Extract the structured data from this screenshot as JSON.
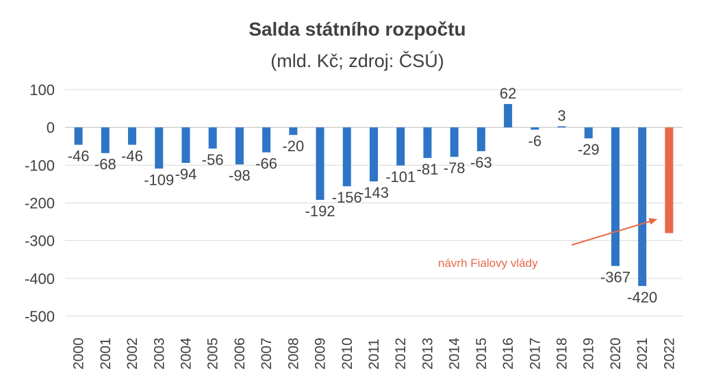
{
  "chart_data": {
    "type": "bar",
    "title": "Salda státního rozpočtu",
    "subtitle": "(mld. Kč; zdroj: ČSÚ)",
    "xlabel": "",
    "ylabel": "",
    "ylim": [
      -500,
      100
    ],
    "yticks": [
      "100",
      "0",
      "-100",
      "-200",
      "-300",
      "-400",
      "-500"
    ],
    "categories": [
      "2000",
      "2001",
      "2002",
      "2003",
      "2004",
      "2005",
      "2006",
      "2007",
      "2008",
      "2009",
      "2010",
      "2011",
      "2012",
      "2013",
      "2014",
      "2015",
      "2016",
      "2017",
      "2018",
      "2019",
      "2020",
      "2021",
      "2022"
    ],
    "values": [
      -46,
      -68,
      -46,
      -109,
      -94,
      -56,
      -98,
      -66,
      -20,
      -192,
      -156,
      -143,
      -101,
      -81,
      -78,
      -63,
      62,
      -6,
      3,
      -29,
      -367,
      -420,
      -280
    ],
    "data_labels": [
      "-46",
      "-68",
      "-46",
      "-109",
      "-94",
      "-56",
      "-98",
      "-66",
      "-20",
      "-192",
      "-156",
      "-143",
      "-101",
      "-81",
      "-78",
      "-63",
      "62",
      "-6",
      "3",
      "-29",
      "-367",
      "-420",
      ""
    ],
    "bar_color": "#2E75C6",
    "highlight_color": "#E8694A",
    "highlight_index": 22,
    "grid": true,
    "annotation": {
      "text": "návrh Fialovy vlády",
      "target_category": "2022"
    }
  }
}
